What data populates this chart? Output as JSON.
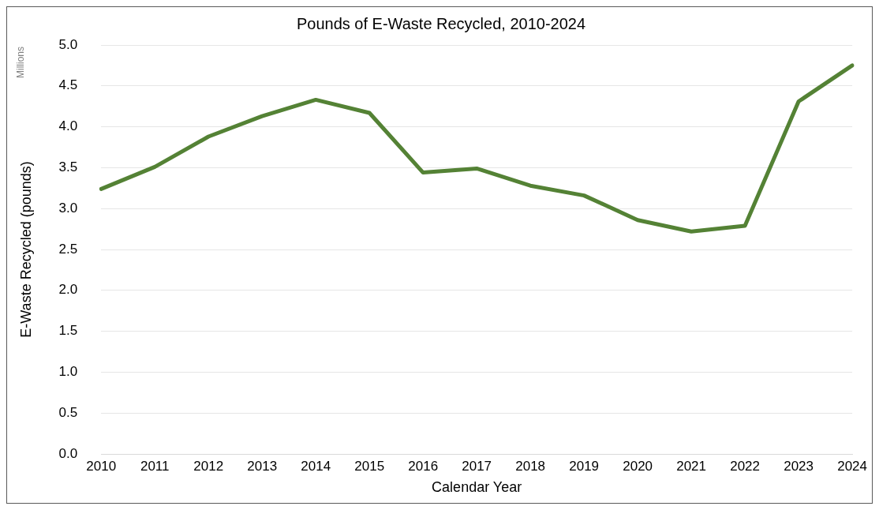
{
  "chart_data": {
    "type": "line",
    "title": "Pounds of E-Waste Recycled, 2010-2024",
    "xlabel": "Calendar Year",
    "ylabel": "E-Waste Recycled (pounds)",
    "annotations": [
      "Millions"
    ],
    "categories": [
      "2010",
      "2011",
      "2012",
      "2013",
      "2014",
      "2015",
      "2016",
      "2017",
      "2018",
      "2019",
      "2020",
      "2021",
      "2022",
      "2023",
      "2024"
    ],
    "series": [
      {
        "color": "#548235",
        "values": [
          3.24,
          3.51,
          3.88,
          4.13,
          4.33,
          4.17,
          3.44,
          3.49,
          3.28,
          3.16,
          2.86,
          2.72,
          2.79,
          4.31,
          4.75
        ]
      }
    ],
    "ylim": [
      0,
      5
    ],
    "yticks": [
      {
        "value": 0,
        "label": "0.0"
      },
      {
        "value": 0.5,
        "label": "0.5"
      },
      {
        "value": 1,
        "label": "1.0"
      },
      {
        "value": 1.5,
        "label": "1.5"
      },
      {
        "value": 2,
        "label": "2.0"
      },
      {
        "value": 2.5,
        "label": "2.5"
      },
      {
        "value": 3,
        "label": "3.0"
      },
      {
        "value": 3.5,
        "label": "3.5"
      },
      {
        "value": 4,
        "label": "4.0"
      },
      {
        "value": 4.5,
        "label": "4.5"
      },
      {
        "value": 5,
        "label": "5.0"
      }
    ],
    "grid": "y",
    "legend": false,
    "marker": "none",
    "line_style": "solid"
  }
}
